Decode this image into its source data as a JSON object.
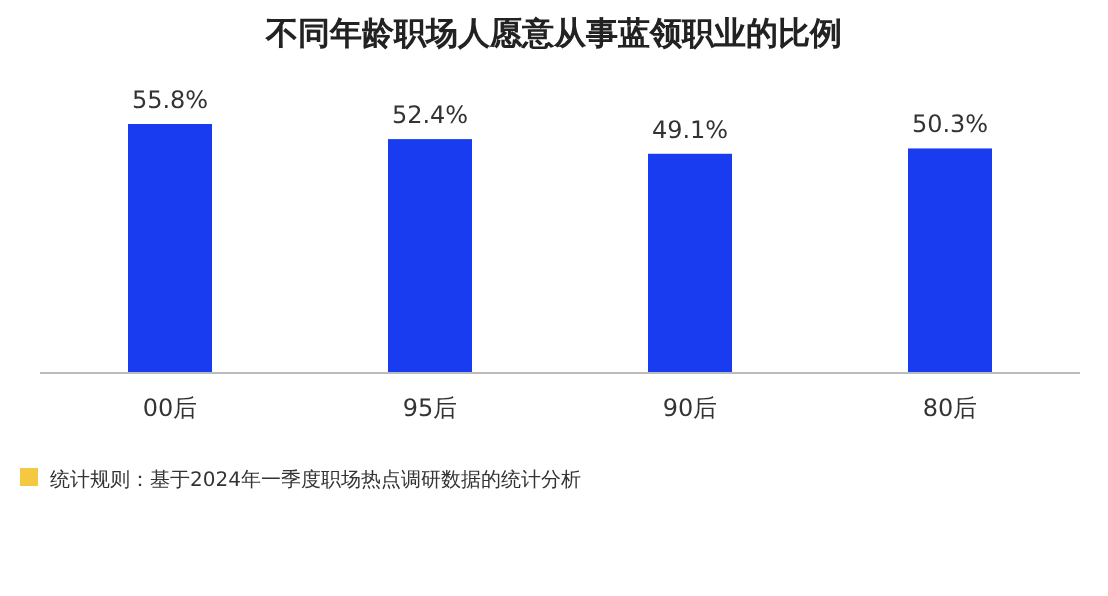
{
  "chart_data": {
    "type": "bar",
    "title": "不同年龄职场人愿意从事蓝领职业的比例",
    "categories": [
      "00后",
      "95后",
      "90后",
      "80后"
    ],
    "values": [
      55.8,
      52.4,
      49.1,
      50.3
    ],
    "value_labels": [
      "55.8%",
      "52.4%",
      "49.1%",
      "50.3%"
    ],
    "color": "#1a3cf0",
    "tick_labels": "x",
    "annotations": [
      "统计规则：基于2024年一季度职场热点调研数据的统计分析"
    ]
  }
}
